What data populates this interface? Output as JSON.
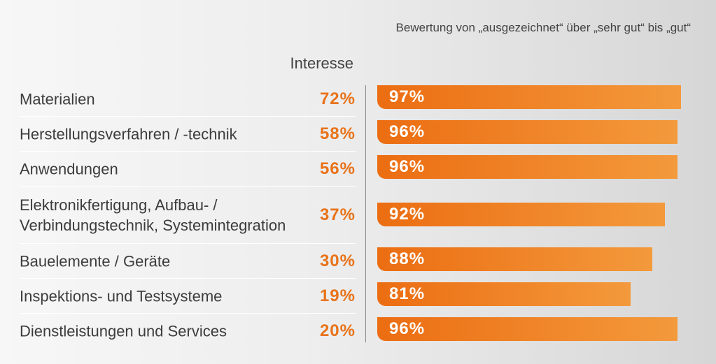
{
  "chart_data": {
    "type": "bar",
    "orientation": "horizontal",
    "subtitle": "Bewertung von „ausgezeichnet“ über „sehr gut“ bis „gut“",
    "interest_header": "Interesse",
    "categories": [
      "Materialien",
      "Herstellungsverfahren / -technik",
      "Anwendungen",
      "Elektronikfertigung, Aufbau- / Verbindungstechnik, Systemintegration",
      "Bauelemente / Geräte",
      "Inspektions- und Testsysteme",
      "Dienstleistungen und Services"
    ],
    "series": [
      {
        "name": "Interesse",
        "values": [
          72,
          58,
          56,
          37,
          30,
          19,
          20
        ],
        "labels": [
          "72%",
          "58%",
          "56%",
          "37%",
          "30%",
          "19%",
          "20%"
        ]
      },
      {
        "name": "Bewertung",
        "values": [
          97,
          96,
          96,
          92,
          88,
          81,
          96
        ],
        "labels": [
          "97%",
          "96%",
          "96%",
          "92%",
          "88%",
          "81%",
          "96%"
        ]
      }
    ],
    "xlim": [
      0,
      100
    ],
    "colors": {
      "bar_start": "#ec6d12",
      "bar_end": "#f39a3c",
      "interest_text": "#e8731a",
      "bar_text": "#ffffff"
    }
  }
}
